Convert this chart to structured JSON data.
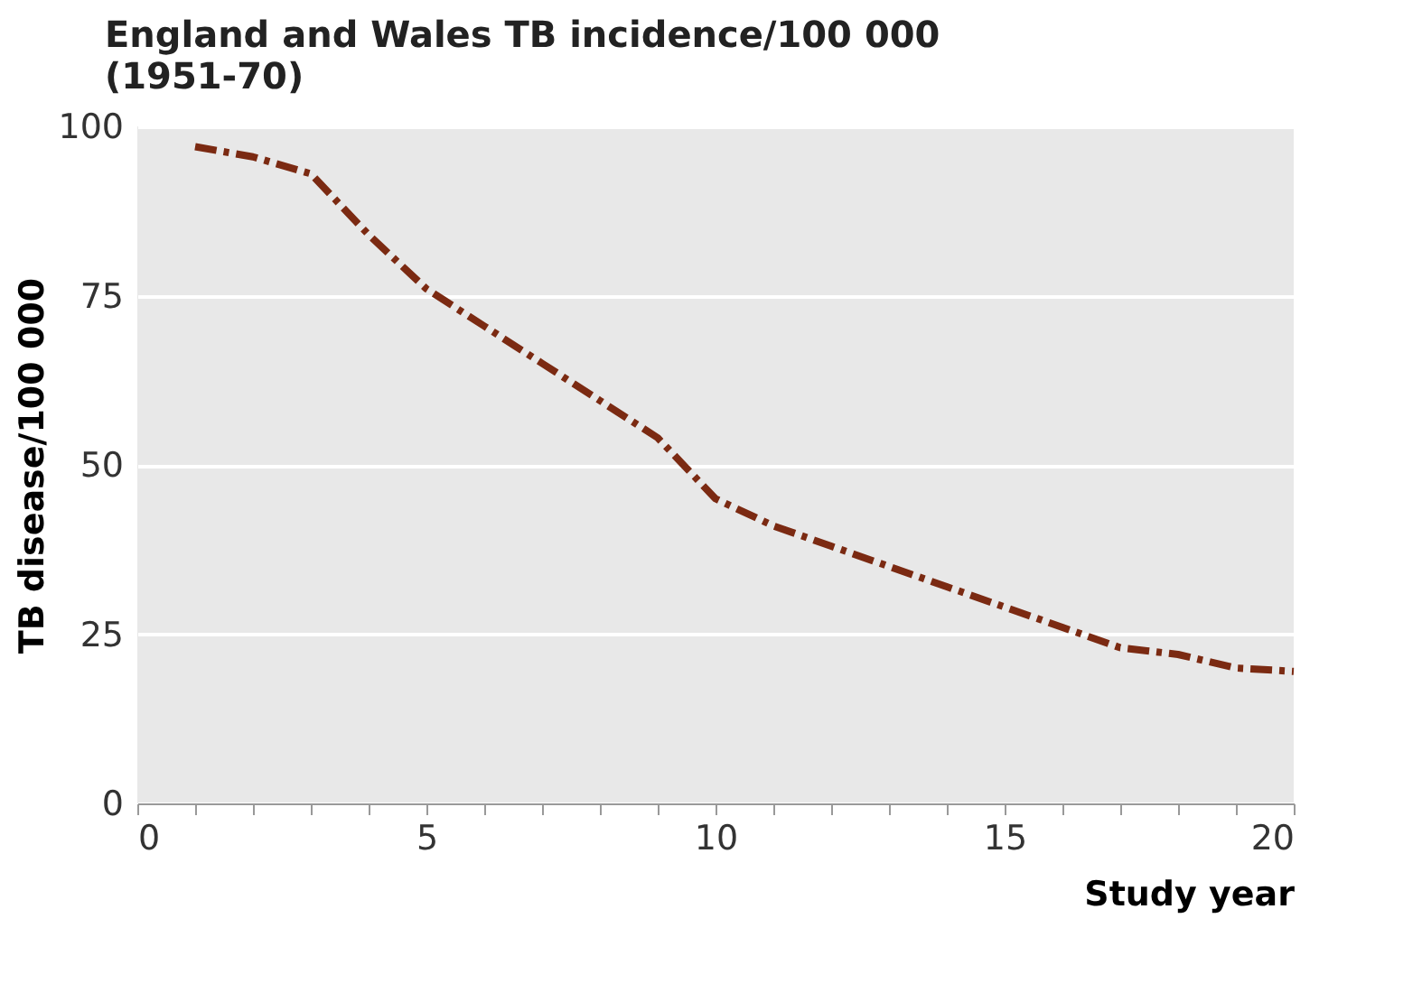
{
  "chart_data": {
    "type": "line",
    "title": "England and Wales TB incidence/100 000",
    "subtitle": "(1951-70)",
    "xlabel": "Study year",
    "ylabel": "TB disease/100 000",
    "x": [
      1,
      2,
      3,
      4,
      5,
      6,
      7,
      8,
      9,
      10,
      11,
      12,
      13,
      14,
      15,
      16,
      17,
      18,
      19,
      20
    ],
    "series": [
      {
        "color": "#7b2a12",
        "values": [
          97,
          95.5,
          93,
          84,
          76,
          70.5,
          65,
          59.5,
          54,
          45,
          41,
          38,
          35,
          32,
          29,
          26,
          23,
          22,
          20,
          19.5
        ]
      }
    ],
    "xlim": [
      0,
      20
    ],
    "ylim": [
      0,
      100
    ],
    "xticks": [
      0,
      {
        "value": 1,
        "label": null
      },
      {
        "value": 2,
        "label": null
      },
      {
        "value": 3,
        "label": null
      },
      {
        "value": 4,
        "label": null
      },
      5,
      {
        "value": 6,
        "label": null
      },
      {
        "value": 7,
        "label": null
      },
      {
        "value": 8,
        "label": null
      },
      {
        "value": 9,
        "label": null
      },
      10,
      {
        "value": 11,
        "label": null
      },
      {
        "value": 12,
        "label": null
      },
      {
        "value": 13,
        "label": null
      },
      {
        "value": 14,
        "label": null
      },
      15,
      {
        "value": 16,
        "label": null
      },
      {
        "value": 17,
        "label": null
      },
      {
        "value": 18,
        "label": null
      },
      {
        "value": 19,
        "label": null
      },
      20
    ],
    "yticks": [
      0,
      25,
      50,
      75,
      100
    ],
    "grid": "y",
    "line_style": "dashed",
    "marker": "none"
  }
}
